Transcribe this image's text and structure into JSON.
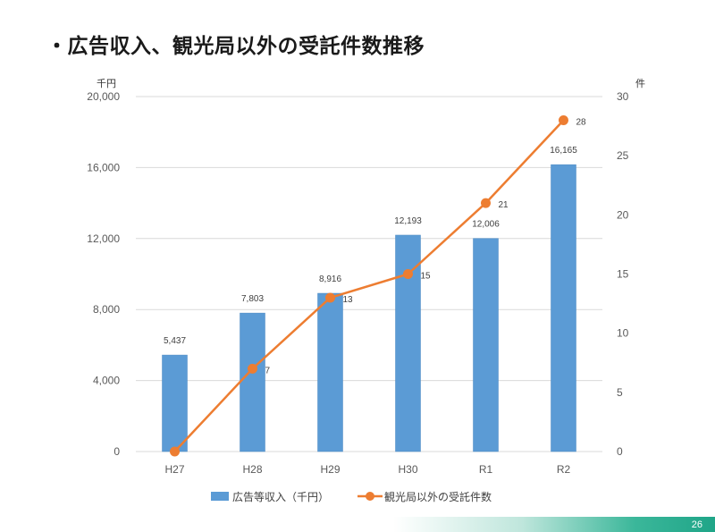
{
  "slide": {
    "title": "・広告収入、観光局以外の受託件数推移",
    "page_number": "26"
  },
  "colors": {
    "bar": "#5b9bd5",
    "bar_stroke": "#4a88c2",
    "line": "#ed7d31",
    "grid": "#d9d9d9",
    "axis_text": "#595959"
  },
  "chart_data": {
    "type": "bar+line",
    "categories": [
      "H27",
      "H28",
      "H29",
      "H30",
      "R1",
      "R2"
    ],
    "series": [
      {
        "name": "広告等収入（千円）",
        "type": "bar",
        "axis": "left",
        "values": [
          5437,
          7803,
          8916,
          12193,
          12006,
          16165
        ],
        "labels": [
          "5,437",
          "7,803",
          "8,916",
          "12,193",
          "12,006",
          "16,165"
        ]
      },
      {
        "name": "観光局以外の受託件数",
        "type": "line",
        "axis": "right",
        "values": [
          0,
          7,
          13,
          15,
          21,
          28
        ],
        "labels": [
          "",
          "7",
          "13",
          "15",
          "21",
          "28"
        ]
      }
    ],
    "y_left": {
      "unit": "千円",
      "ylim": [
        0,
        20000
      ],
      "ticks": [
        0,
        4000,
        8000,
        12000,
        16000,
        20000
      ],
      "tick_labels": [
        "0",
        "4,000",
        "8,000",
        "12,000",
        "16,000",
        "20,000"
      ]
    },
    "y_right": {
      "unit": "件",
      "ylim": [
        0,
        30
      ],
      "ticks": [
        0,
        5,
        10,
        15,
        20,
        25,
        30
      ],
      "tick_labels": [
        "0",
        "5",
        "10",
        "15",
        "20",
        "25",
        "30"
      ]
    },
    "grid": true,
    "legend": "bottom"
  }
}
